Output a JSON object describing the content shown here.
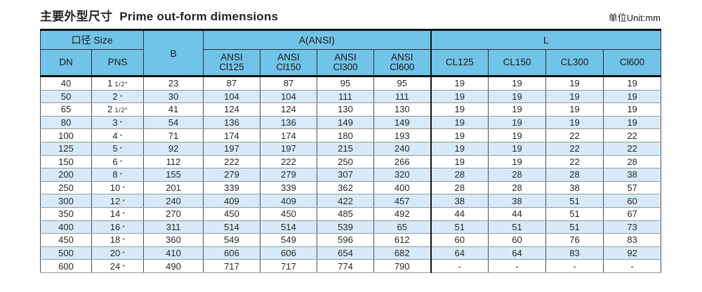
{
  "page": {
    "title_zh": "主要外型尺寸",
    "title_en": "Prime out-form dimensions",
    "unit_label": "单位Unit:mm"
  },
  "colors": {
    "header_bg": "#72C3E8",
    "stripe_bg": "#D8EAF7",
    "border_thick": "#111111",
    "border_dark": "#3F3F3F"
  },
  "table": {
    "header": {
      "size_group": "口径 Size",
      "dn": "DN",
      "pns": "PNS",
      "b": "B",
      "a_group": "A(ANSI)",
      "a_cols": [
        [
          "ANSI",
          "Cl125"
        ],
        [
          "ANSI",
          "Cl150"
        ],
        [
          "ANSI",
          "Cl300"
        ],
        [
          "ANSI",
          "Cl600"
        ]
      ],
      "l_group": "L",
      "l_cols": [
        "CL125",
        "CL150",
        "CL300",
        "Cl600"
      ]
    },
    "rows": [
      [
        "40",
        "1 1/2″",
        "23",
        "87",
        "87",
        "95",
        "95",
        "19",
        "19",
        "19",
        "19"
      ],
      [
        "50",
        "2″",
        "30",
        "104",
        "104",
        "111",
        "111",
        "19",
        "19",
        "19",
        "19"
      ],
      [
        "65",
        "2 1/2″",
        "41",
        "124",
        "124",
        "130",
        "130",
        "19",
        "19",
        "19",
        "19"
      ],
      [
        "80",
        "3″",
        "54",
        "136",
        "136",
        "149",
        "149",
        "19",
        "19",
        "19",
        "19"
      ],
      [
        "100",
        "4″",
        "71",
        "174",
        "174",
        "180",
        "193",
        "19",
        "19",
        "22",
        "22"
      ],
      [
        "125",
        "5″",
        "92",
        "197",
        "197",
        "215",
        "240",
        "19",
        "19",
        "22",
        "22"
      ],
      [
        "150",
        "6″",
        "112",
        "222",
        "222",
        "250",
        "266",
        "19",
        "19",
        "22",
        "28"
      ],
      [
        "200",
        "8″",
        "155",
        "279",
        "279",
        "307",
        "320",
        "28",
        "28",
        "28",
        "38"
      ],
      [
        "250",
        "10″",
        "201",
        "339",
        "339",
        "362",
        "400",
        "28",
        "28",
        "38",
        "57"
      ],
      [
        "300",
        "12″",
        "240",
        "409",
        "409",
        "422",
        "457",
        "38",
        "38",
        "51",
        "60"
      ],
      [
        "350",
        "14″",
        "270",
        "450",
        "450",
        "485",
        "492",
        "44",
        "44",
        "51",
        "67"
      ],
      [
        "400",
        "16″",
        "311",
        "514",
        "514",
        "539",
        "65",
        "51",
        "51",
        "51",
        "73"
      ],
      [
        "450",
        "18″",
        "360",
        "549",
        "549",
        "596",
        "612",
        "60",
        "60",
        "76",
        "83"
      ],
      [
        "500",
        "20″",
        "410",
        "606",
        "606",
        "654",
        "682",
        "64",
        "64",
        "83",
        "92"
      ],
      [
        "600",
        "24″",
        "490",
        "717",
        "717",
        "774",
        "790",
        "-",
        "-",
        "-",
        "-"
      ]
    ]
  }
}
